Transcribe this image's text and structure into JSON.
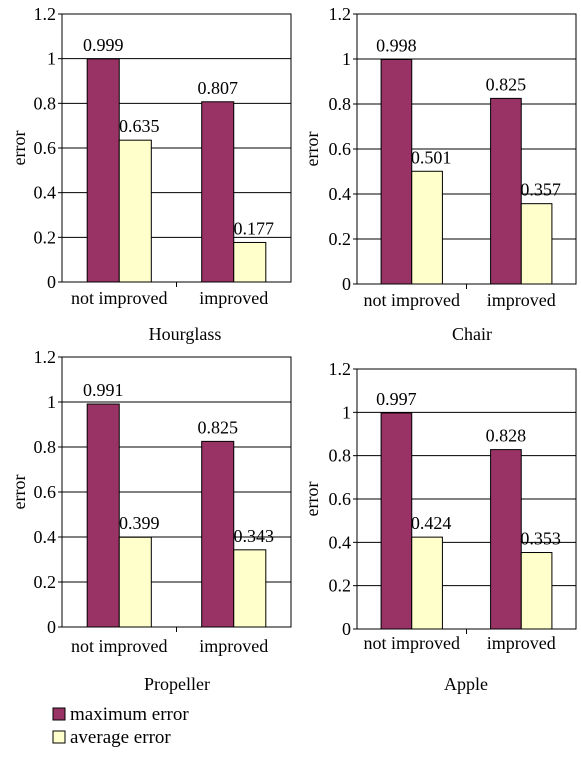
{
  "colors": {
    "maximum": "#993366",
    "average": "#FFFFCC",
    "frame": "#000000",
    "grid": "#000000"
  },
  "legend": {
    "placement": "bottom-left",
    "items": [
      {
        "label": "maximum error",
        "color": "#993366"
      },
      {
        "label": "average error",
        "color": "#FFFFCC"
      }
    ]
  },
  "chart_data": [
    {
      "type": "bar",
      "title": "Hourglass",
      "ylabel": "error",
      "xlabel": "",
      "categories": [
        "not improved",
        "improved"
      ],
      "ylim": [
        0,
        1.2
      ],
      "yticks": [
        "0",
        "0.2",
        "0.4",
        "0.6",
        "0.8",
        "1",
        "1.2"
      ],
      "grid": true,
      "series": [
        {
          "name": "maximum error",
          "values": [
            0.999,
            0.807
          ],
          "labels": [
            "0.999",
            "0.807"
          ]
        },
        {
          "name": "average error",
          "values": [
            0.635,
            0.177
          ],
          "labels": [
            "0.635",
            "0.177"
          ]
        }
      ]
    },
    {
      "type": "bar",
      "title": "Chair",
      "ylabel": "error",
      "xlabel": "",
      "categories": [
        "not improved",
        "improved"
      ],
      "ylim": [
        0,
        1.2
      ],
      "yticks": [
        "0",
        "0.2",
        "0.4",
        "0.6",
        "0.8",
        "1",
        "1.2"
      ],
      "grid": true,
      "series": [
        {
          "name": "maximum error",
          "values": [
            0.998,
            0.825
          ],
          "labels": [
            "0.998",
            "0.825"
          ]
        },
        {
          "name": "average error",
          "values": [
            0.501,
            0.357
          ],
          "labels": [
            "0.501",
            "0.357"
          ]
        }
      ]
    },
    {
      "type": "bar",
      "title": "Propeller",
      "ylabel": "error",
      "xlabel": "",
      "categories": [
        "not improved",
        "improved"
      ],
      "ylim": [
        0,
        1.2
      ],
      "yticks": [
        "0",
        "0.2",
        "0.4",
        "0.6",
        "0.8",
        "1",
        "1.2"
      ],
      "grid": true,
      "series": [
        {
          "name": "maximum error",
          "values": [
            0.991,
            0.825
          ],
          "labels": [
            "0.991",
            "0.825"
          ]
        },
        {
          "name": "average error",
          "values": [
            0.399,
            0.343
          ],
          "labels": [
            "0.399",
            "0.343"
          ]
        }
      ]
    },
    {
      "type": "bar",
      "title": "Apple",
      "ylabel": "error",
      "xlabel": "",
      "categories": [
        "not improved",
        "improved"
      ],
      "ylim": [
        0,
        1.2
      ],
      "yticks": [
        "0",
        "0.2",
        "0.4",
        "0.6",
        "0.8",
        "1",
        "1.2"
      ],
      "grid": true,
      "series": [
        {
          "name": "maximum error",
          "values": [
            0.997,
            0.828
          ],
          "labels": [
            "0.997",
            "0.828"
          ]
        },
        {
          "name": "average error",
          "values": [
            0.424,
            0.353
          ],
          "labels": [
            "0.424",
            "0.353"
          ]
        }
      ]
    }
  ]
}
